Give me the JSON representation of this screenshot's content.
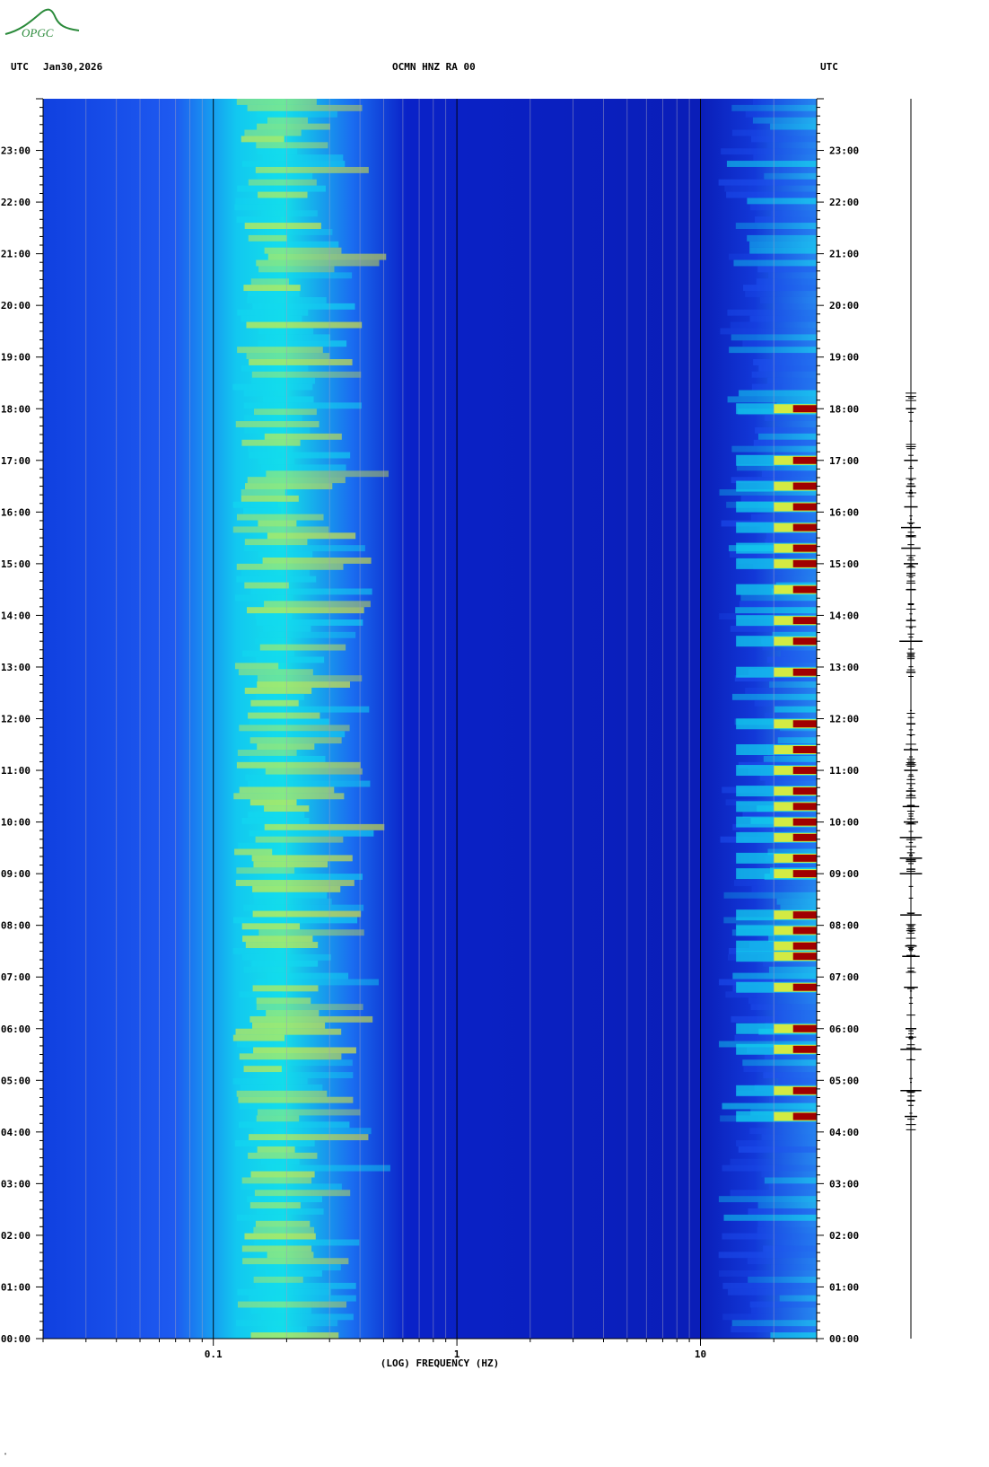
{
  "logo": {
    "text": "OPGC",
    "color": "#2a8a3a"
  },
  "header": {
    "left_tz": "UTC",
    "date": "Jan30,2026",
    "station": "OCMN HNZ RA 00",
    "right_tz": "UTC"
  },
  "footnote": "\"",
  "chart_data": {
    "type": "heatmap",
    "title": "OCMN HNZ RA 00",
    "xlabel": "(LOG) FREQUENCY (HZ)",
    "x_scale": "log",
    "x_range": [
      0.02,
      30
    ],
    "x_ticks": [
      {
        "value": 0.1,
        "label": "0.1"
      },
      {
        "value": 1,
        "label": "1"
      },
      {
        "value": 10,
        "label": "10"
      }
    ],
    "y_range_hours": [
      0,
      24
    ],
    "y_ticks": [
      "00:00",
      "01:00",
      "02:00",
      "03:00",
      "04:00",
      "05:00",
      "06:00",
      "07:00",
      "08:00",
      "09:00",
      "10:00",
      "11:00",
      "12:00",
      "13:00",
      "14:00",
      "15:00",
      "16:00",
      "17:00",
      "18:00",
      "19:00",
      "20:00",
      "21:00",
      "22:00",
      "23:00"
    ],
    "colors": {
      "background": "#0a22c8",
      "low": "#1e50f0",
      "mid": "#12d8f0",
      "high": "#e8f030",
      "peak": "#a00000"
    },
    "bands": [
      {
        "f_from": 0.12,
        "f_to": 0.22,
        "level": "mid"
      },
      {
        "f_from": 0.06,
        "f_to": 0.4,
        "level": "low"
      },
      {
        "f_from": 12,
        "f_to": 30,
        "level": "mid"
      }
    ],
    "events_hours": [
      4.3,
      4.8,
      5.6,
      6.0,
      6.8,
      7.4,
      7.6,
      7.9,
      8.2,
      9.0,
      9.3,
      9.7,
      10.0,
      10.3,
      10.6,
      11.0,
      11.4,
      11.9,
      12.9,
      13.5,
      13.9,
      14.5,
      15.0,
      15.3,
      15.7,
      16.1,
      16.5,
      17.0,
      18.0
    ]
  }
}
